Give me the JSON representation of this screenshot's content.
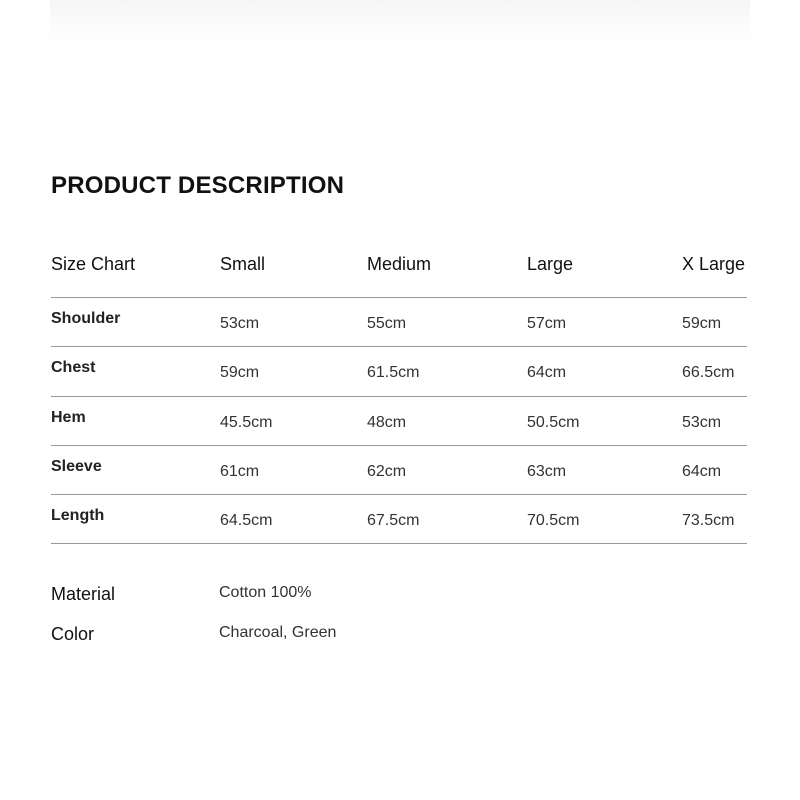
{
  "title": "PRODUCT DESCRIPTION",
  "size_chart": {
    "header": [
      "Size Chart",
      "Small",
      "Medium",
      "Large",
      "X Large"
    ],
    "rows": [
      {
        "label": "Shoulder",
        "values": [
          "53cm",
          "55cm",
          "57cm",
          "59cm"
        ]
      },
      {
        "label": "Chest",
        "values": [
          "59cm",
          "61.5cm",
          "64cm",
          "66.5cm"
        ]
      },
      {
        "label": "Hem",
        "values": [
          "45.5cm",
          "48cm",
          "50.5cm",
          "53cm"
        ]
      },
      {
        "label": "Sleeve",
        "values": [
          "61cm",
          "62cm",
          "63cm",
          "64cm"
        ]
      },
      {
        "label": "Length",
        "values": [
          "64.5cm",
          "67.5cm",
          "70.5cm",
          "73.5cm"
        ]
      }
    ]
  },
  "details": [
    {
      "label": "Material",
      "value": "Cotton 100%"
    },
    {
      "label": "Color",
      "value": "Charcoal, Green"
    }
  ]
}
